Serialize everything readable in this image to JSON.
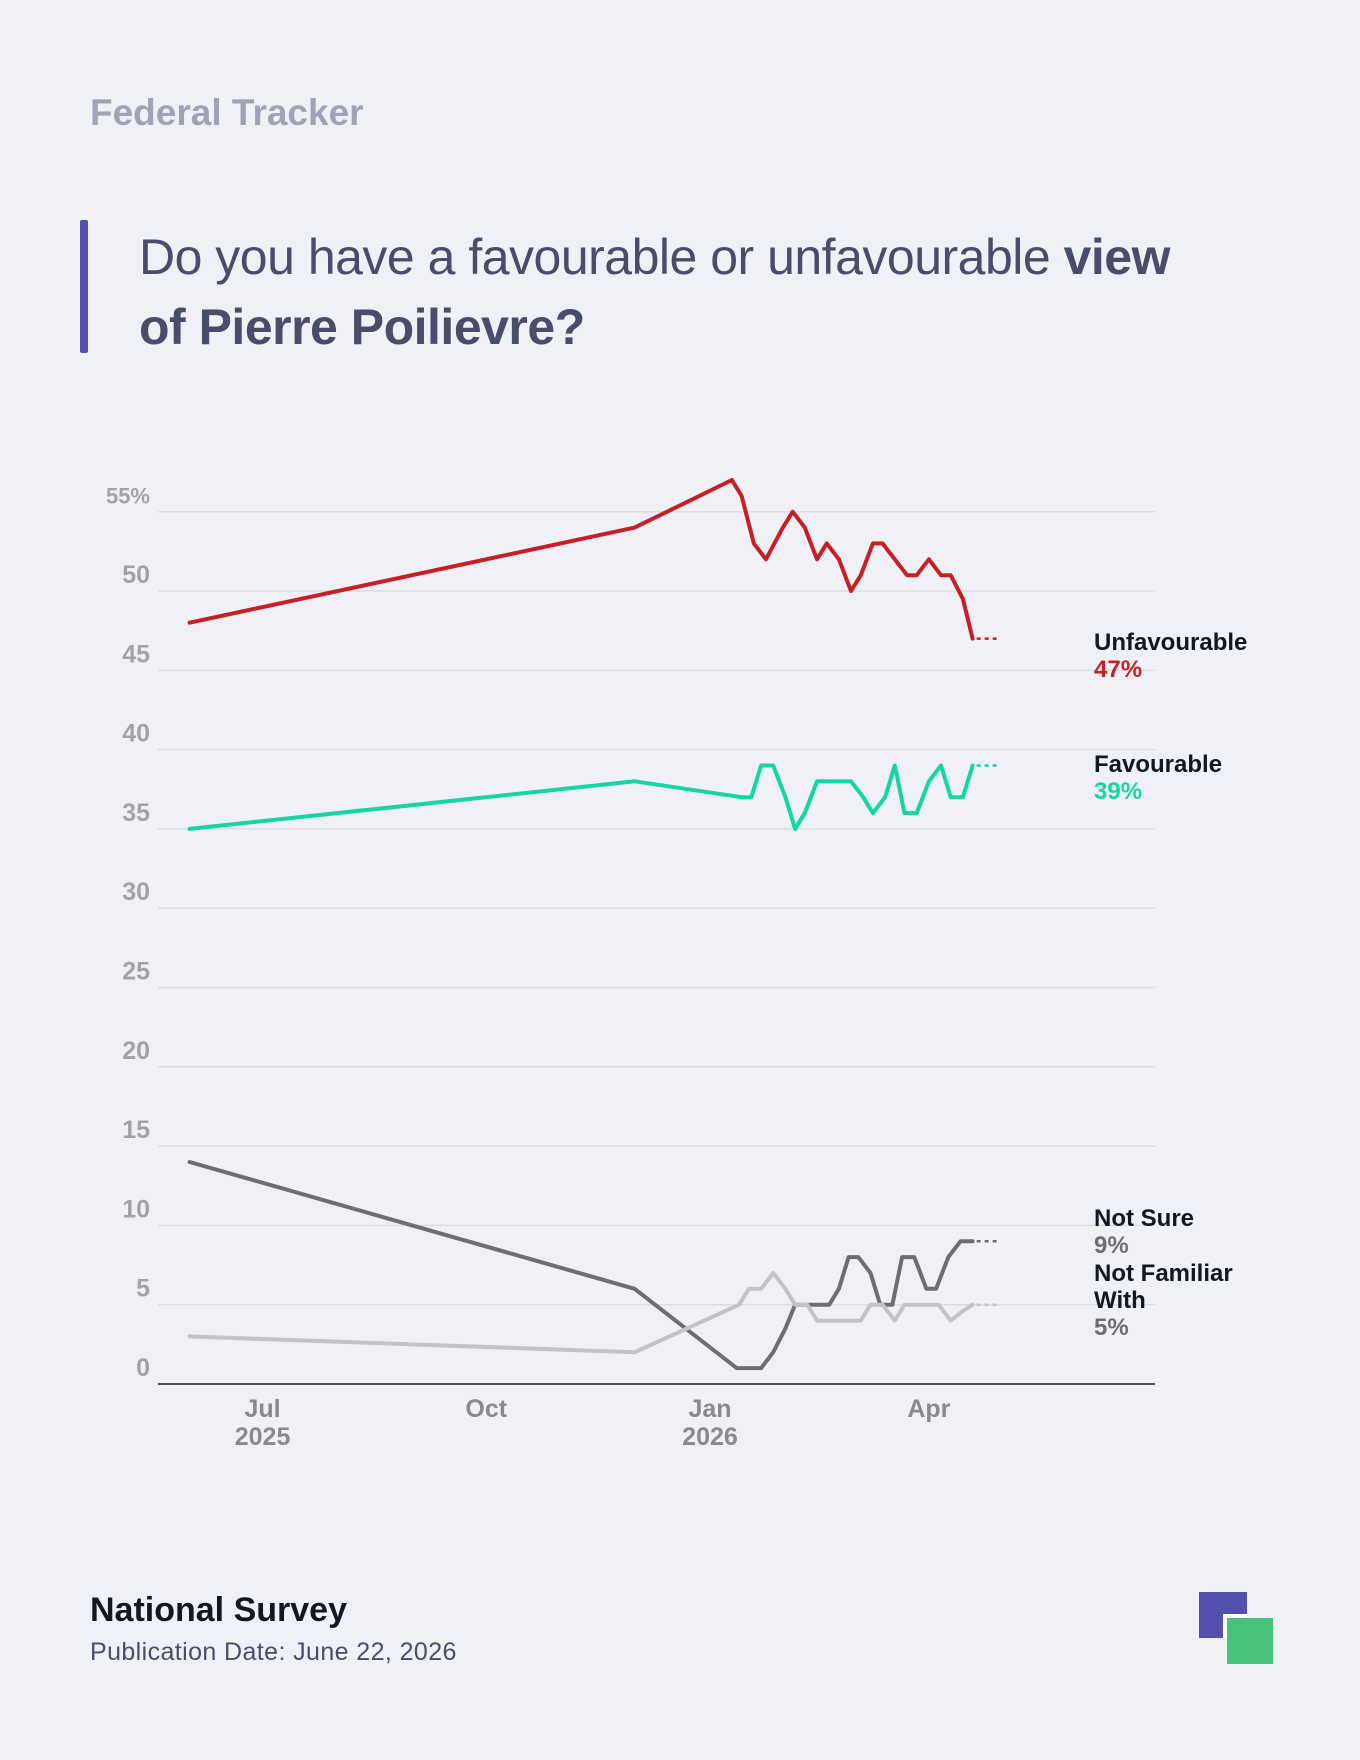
{
  "header": {
    "tracker": "Federal Tracker",
    "question_regular": "Do you have a favourable or unfavourable ",
    "question_bold_1": "view",
    "question_bold_2": "of Pierre Poilievre?"
  },
  "footer": {
    "source": "National Survey",
    "publication": "Publication Date: June 22, 2026"
  },
  "colors": {
    "unfavourable": "#c71f26",
    "favourable": "#14d6a3",
    "not_sure": "#6e6e6e",
    "not_familiar": "#c3c3c3",
    "grid": "#dcdde3",
    "axis_text": "#a3a3a3",
    "month_text": "#8a8a8a",
    "logo_purple": "#5151ad",
    "logo_green": "#46c27c"
  },
  "chart_data": {
    "type": "line",
    "ylim": [
      0,
      57
    ],
    "y_ticks": [
      0,
      5,
      10,
      15,
      20,
      25,
      30,
      35,
      40,
      45,
      50,
      55
    ],
    "y_tick_labels": [
      "0",
      "5",
      "10",
      "15",
      "20",
      "25",
      "30",
      "35",
      "40",
      "45",
      "50",
      "55%"
    ],
    "xlim": [
      "2025-05-19",
      "2026-07-03"
    ],
    "x_ticks": [
      {
        "date": "2025-07-01",
        "month": "Jul",
        "year": "2025"
      },
      {
        "date": "2025-10-01",
        "month": "Oct",
        "year": ""
      },
      {
        "date": "2026-01-01",
        "month": "Jan",
        "year": "2026"
      },
      {
        "date": "2026-04-01",
        "month": "Apr",
        "year": ""
      }
    ],
    "series": [
      {
        "name": "Unfavourable",
        "end_label": "47%",
        "color_key": "unfavourable",
        "points": [
          [
            "2025-06-01",
            48
          ],
          [
            "2025-12-01",
            54
          ],
          [
            "2026-01-10",
            57
          ],
          [
            "2026-01-14",
            56
          ],
          [
            "2026-01-19",
            53
          ],
          [
            "2026-01-24",
            52
          ],
          [
            "2026-01-31",
            54
          ],
          [
            "2026-02-04",
            55
          ],
          [
            "2026-02-09",
            54
          ],
          [
            "2026-02-14",
            52
          ],
          [
            "2026-02-18",
            53
          ],
          [
            "2026-02-23",
            52
          ],
          [
            "2026-02-28",
            50
          ],
          [
            "2026-03-04",
            51
          ],
          [
            "2026-03-09",
            53
          ],
          [
            "2026-03-13",
            53
          ],
          [
            "2026-03-18",
            52
          ],
          [
            "2026-03-23",
            51
          ],
          [
            "2026-03-27",
            51
          ],
          [
            "2026-04-01",
            52
          ],
          [
            "2026-04-06",
            51
          ],
          [
            "2026-04-10",
            51
          ],
          [
            "2026-04-15",
            49.5
          ],
          [
            "2026-04-19",
            47
          ]
        ]
      },
      {
        "name": "Favourable",
        "end_label": "39%",
        "color_key": "favourable",
        "points": [
          [
            "2025-06-01",
            35
          ],
          [
            "2025-12-01",
            38
          ],
          [
            "2026-01-14",
            37
          ],
          [
            "2026-01-18",
            37
          ],
          [
            "2026-01-22",
            39
          ],
          [
            "2026-01-27",
            39
          ],
          [
            "2026-02-01",
            37
          ],
          [
            "2026-02-05",
            35
          ],
          [
            "2026-02-09",
            36
          ],
          [
            "2026-02-14",
            38
          ],
          [
            "2026-02-18",
            38
          ],
          [
            "2026-02-23",
            38
          ],
          [
            "2026-02-28",
            38
          ],
          [
            "2026-03-05",
            37
          ],
          [
            "2026-03-09",
            36
          ],
          [
            "2026-03-14",
            37
          ],
          [
            "2026-03-18",
            39
          ],
          [
            "2026-03-22",
            36
          ],
          [
            "2026-03-27",
            36
          ],
          [
            "2026-04-01",
            38
          ],
          [
            "2026-04-06",
            39
          ],
          [
            "2026-04-10",
            37
          ],
          [
            "2026-04-15",
            37
          ],
          [
            "2026-04-19",
            39
          ]
        ]
      },
      {
        "name": "Not Sure",
        "end_label": "9%",
        "color_key": "not_sure",
        "points": [
          [
            "2025-06-01",
            14
          ],
          [
            "2025-12-01",
            6
          ],
          [
            "2026-01-12",
            1
          ],
          [
            "2026-01-17",
            1
          ],
          [
            "2026-01-22",
            1
          ],
          [
            "2026-01-27",
            2
          ],
          [
            "2026-02-01",
            3.5
          ],
          [
            "2026-02-05",
            5
          ],
          [
            "2026-02-10",
            5
          ],
          [
            "2026-02-14",
            5
          ],
          [
            "2026-02-19",
            5
          ],
          [
            "2026-02-23",
            6
          ],
          [
            "2026-02-27",
            8
          ],
          [
            "2026-03-03",
            8
          ],
          [
            "2026-03-08",
            7
          ],
          [
            "2026-03-12",
            5
          ],
          [
            "2026-03-17",
            5
          ],
          [
            "2026-03-21",
            8
          ],
          [
            "2026-03-26",
            8
          ],
          [
            "2026-03-31",
            6
          ],
          [
            "2026-04-04",
            6
          ],
          [
            "2026-04-09",
            8
          ],
          [
            "2026-04-14",
            9
          ],
          [
            "2026-04-19",
            9
          ]
        ]
      },
      {
        "name": "Not Familiar With",
        "end_label": "5%",
        "color_key": "not_familiar",
        "points": [
          [
            "2025-06-01",
            3
          ],
          [
            "2025-12-01",
            2
          ],
          [
            "2026-01-13",
            5
          ],
          [
            "2026-01-17",
            6
          ],
          [
            "2026-01-22",
            6
          ],
          [
            "2026-01-27",
            7
          ],
          [
            "2026-02-01",
            6
          ],
          [
            "2026-02-05",
            5
          ],
          [
            "2026-02-10",
            5
          ],
          [
            "2026-02-14",
            4
          ],
          [
            "2026-02-19",
            4
          ],
          [
            "2026-02-23",
            4
          ],
          [
            "2026-02-28",
            4
          ],
          [
            "2026-03-04",
            4
          ],
          [
            "2026-03-08",
            5
          ],
          [
            "2026-03-13",
            5
          ],
          [
            "2026-03-18",
            4
          ],
          [
            "2026-03-22",
            5
          ],
          [
            "2026-03-27",
            5
          ],
          [
            "2026-04-01",
            5
          ],
          [
            "2026-04-05",
            5
          ],
          [
            "2026-04-10",
            4
          ],
          [
            "2026-04-15",
            4.6
          ],
          [
            "2026-04-19",
            5
          ]
        ]
      }
    ],
    "legend_placement": "right end labels",
    "grid": true
  }
}
